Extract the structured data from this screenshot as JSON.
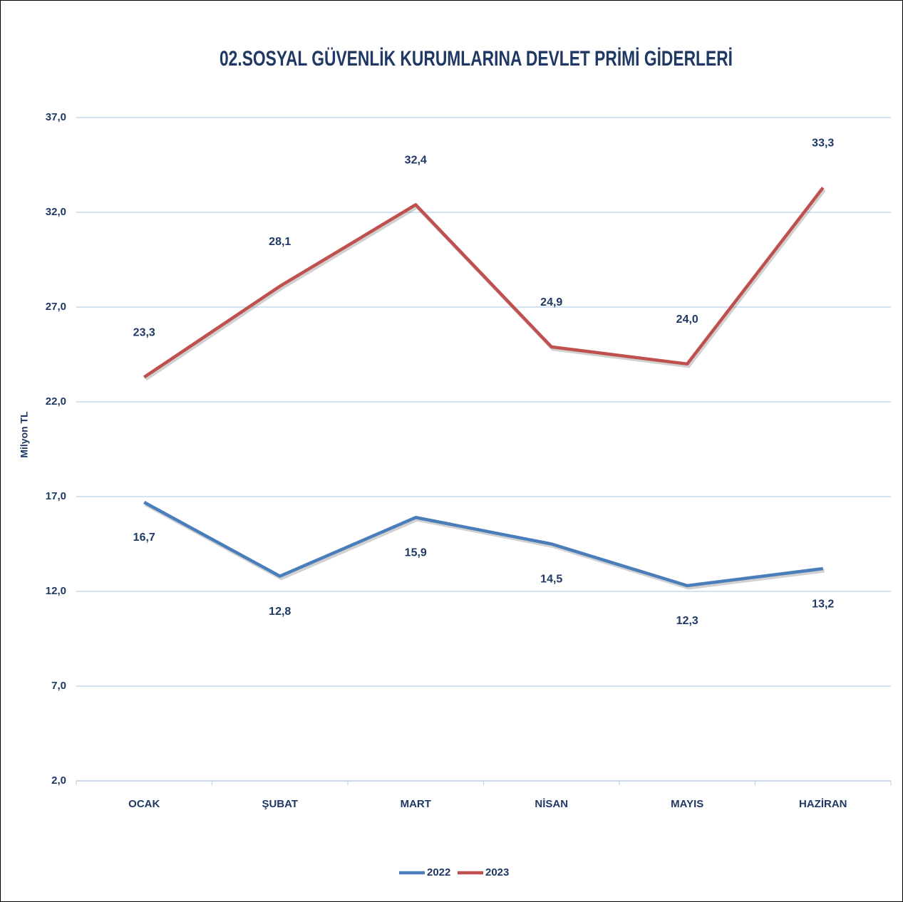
{
  "chart_data": {
    "type": "line",
    "title": "02.SOSYAL GÜVENLİK KURUMLARINA DEVLET PRİMİ GİDERLERİ",
    "y_axis_label": "Milyon TL",
    "categories": [
      "OCAK",
      "ŞUBAT",
      "MART",
      "NİSAN",
      "MAYIS",
      "HAZİRAN"
    ],
    "series": [
      {
        "name": "2022",
        "color": "#4a7ebb",
        "values": [
          16.7,
          12.8,
          15.9,
          14.5,
          12.3,
          13.2
        ],
        "value_labels": [
          "16,7",
          "12,8",
          "15,9",
          "14,5",
          "12,3",
          "13,2"
        ]
      },
      {
        "name": "2023",
        "color": "#c0504d",
        "values": [
          23.3,
          28.1,
          32.4,
          24.9,
          24.0,
          33.3
        ],
        "value_labels": [
          "23,3",
          "28,1",
          "32,4",
          "24,9",
          "24,0",
          "33,3"
        ]
      }
    ],
    "ylim": [
      2,
      37
    ],
    "yticks": [
      {
        "value": 2,
        "label": "2,0"
      },
      {
        "value": 7,
        "label": "7,0"
      },
      {
        "value": 12,
        "label": "12,0"
      },
      {
        "value": 17,
        "label": "17,0"
      },
      {
        "value": 22,
        "label": "22,0"
      },
      {
        "value": 27,
        "label": "27,0"
      },
      {
        "value": 32,
        "label": "32,0"
      },
      {
        "value": 37,
        "label": "37,0"
      }
    ],
    "grid": true,
    "legend": "bottom"
  }
}
